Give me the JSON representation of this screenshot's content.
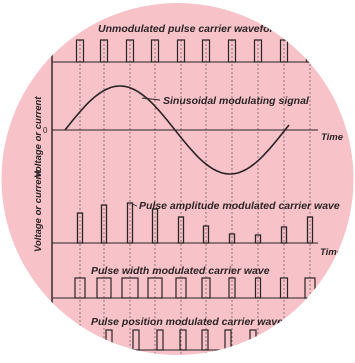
{
  "colors": {
    "disc_fill": "#f7c3c8",
    "ink": "#2a2326",
    "background": "#ffffff"
  },
  "panels": {
    "unmodulated": {
      "title": "Unmodulated pulse carrier waveform"
    },
    "sine": {
      "title": "Sinusoidal modulating signal",
      "xlabel": "Time",
      "zero_label": "0"
    },
    "pam": {
      "title": "Pulse amplitude modulated carrier wave",
      "xlabel": "Time"
    },
    "pwm": {
      "title": "Pulse width modulated carrier wave"
    },
    "ppm": {
      "title": "Pulse position modulated carrier wave"
    }
  },
  "ylabels": {
    "upper": "Voltage or current",
    "lower": "Voltage or current"
  }
}
